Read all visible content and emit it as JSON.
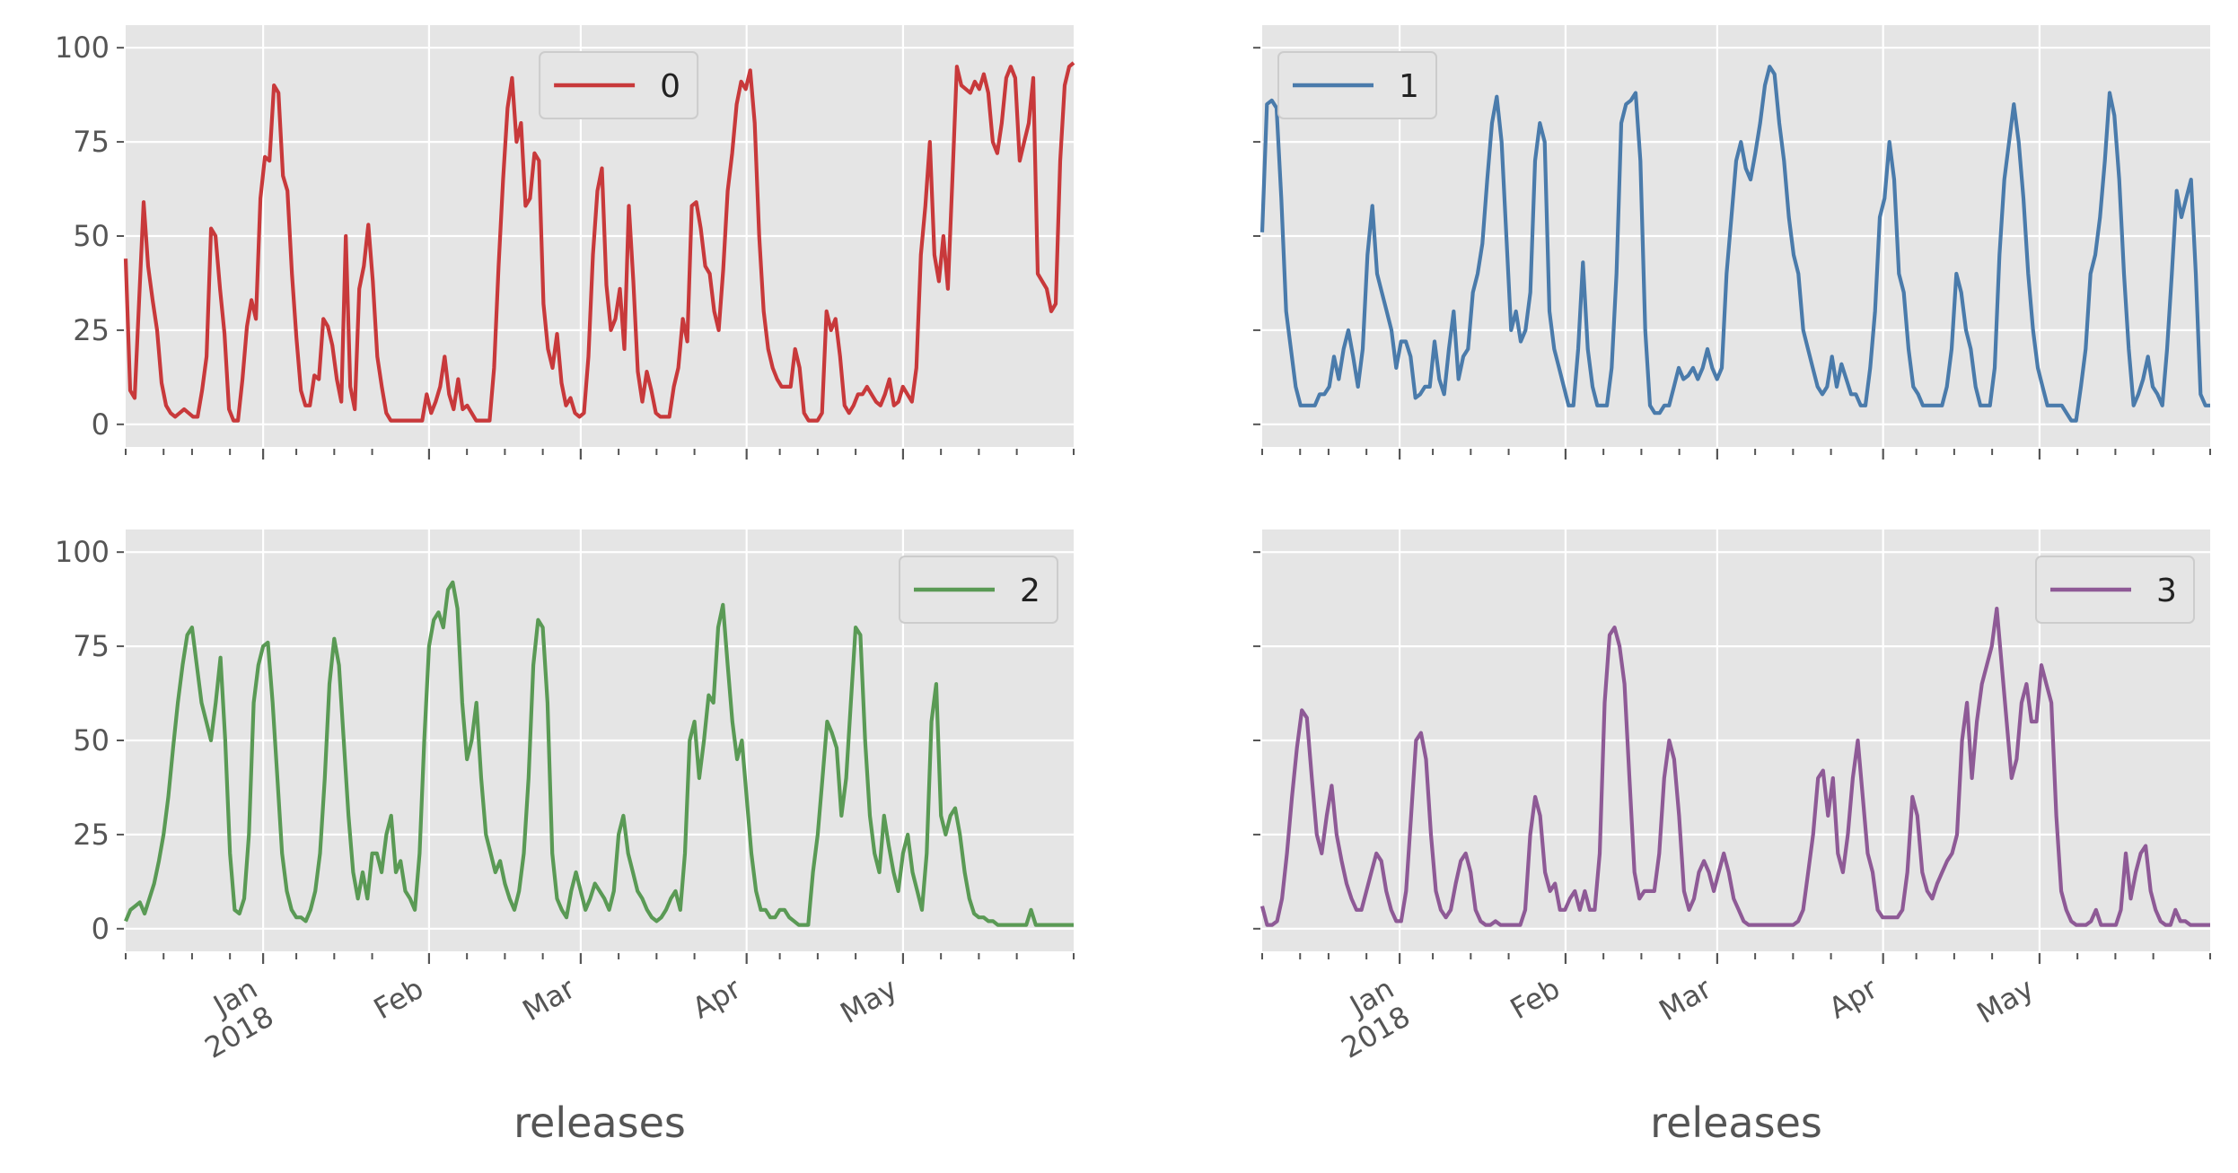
{
  "figure": {
    "background": "#ffffff",
    "panel_background": "#e5e5e5",
    "grid_color": "#ffffff"
  },
  "chart_data": [
    {
      "type": "line",
      "panel": "top-left",
      "series": [
        {
          "name": "0",
          "color": "#c8393b",
          "values": [
            44,
            9,
            7,
            33,
            59,
            42,
            33,
            25,
            11,
            5,
            3,
            2,
            3,
            4,
            3,
            2,
            2,
            9,
            18,
            52,
            50,
            36,
            24,
            4,
            1,
            1,
            12,
            26,
            33,
            28,
            60,
            71,
            70,
            90,
            88,
            66,
            62,
            40,
            23,
            9,
            5,
            5,
            13,
            12,
            28,
            26,
            21,
            12,
            6,
            50,
            10,
            4,
            36,
            42,
            53,
            38,
            18,
            10,
            3,
            1,
            1,
            1,
            1,
            1,
            1,
            1,
            1,
            8,
            3,
            6,
            10,
            18,
            8,
            4,
            12,
            4,
            5,
            3,
            1,
            1,
            1,
            1,
            15,
            42,
            65,
            84,
            92,
            75,
            80,
            58,
            60,
            72,
            70,
            32,
            20,
            15,
            24,
            11,
            5,
            7,
            3,
            2,
            3,
            18,
            45,
            62,
            68,
            37,
            25,
            28,
            36,
            20,
            58,
            38,
            14,
            6,
            14,
            9,
            3,
            2,
            2,
            2,
            10,
            15,
            28,
            22,
            58,
            59,
            52,
            42,
            40,
            30,
            25,
            41,
            62,
            72,
            85,
            91,
            89,
            94,
            80,
            50,
            30,
            20,
            15,
            12,
            10,
            10,
            10,
            20,
            15,
            3,
            1,
            1,
            1,
            3,
            30,
            25,
            28,
            18,
            5,
            3,
            5,
            8,
            8,
            10,
            8,
            6,
            5,
            8,
            12,
            5,
            6,
            10,
            8,
            6,
            15,
            45,
            58,
            75,
            45,
            38,
            50,
            36,
            65,
            95,
            90,
            89,
            88,
            91,
            89,
            93,
            88,
            75,
            72,
            80,
            92,
            95,
            92,
            70,
            75,
            80,
            92,
            40,
            38,
            36,
            30,
            32,
            70,
            90,
            95,
            96
          ]
        }
      ],
      "x_ticks": [
        "Jan\n2018",
        "Feb",
        "Mar",
        "Apr",
        "May"
      ],
      "ylim": [
        0,
        100
      ],
      "yticks": [
        0,
        25,
        50,
        75,
        100
      ],
      "ytick_labels_visible": true,
      "xtick_labels_visible": false,
      "legend": "top-center",
      "xlabel": ""
    },
    {
      "type": "line",
      "panel": "top-right",
      "series": [
        {
          "name": "1",
          "color": "#4a7bab",
          "values": [
            51,
            85,
            86,
            84,
            60,
            30,
            20,
            10,
            5,
            5,
            5,
            5,
            8,
            8,
            10,
            18,
            12,
            20,
            25,
            18,
            10,
            20,
            45,
            58,
            40,
            35,
            30,
            25,
            15,
            22,
            22,
            18,
            7,
            8,
            10,
            10,
            22,
            12,
            8,
            20,
            30,
            12,
            18,
            20,
            35,
            40,
            48,
            65,
            80,
            87,
            75,
            50,
            25,
            30,
            22,
            25,
            35,
            70,
            80,
            75,
            30,
            20,
            15,
            10,
            5,
            5,
            20,
            43,
            20,
            10,
            5,
            5,
            5,
            15,
            40,
            80,
            85,
            86,
            88,
            70,
            25,
            5,
            3,
            3,
            5,
            5,
            10,
            15,
            12,
            13,
            15,
            12,
            15,
            20,
            15,
            12,
            15,
            40,
            55,
            70,
            75,
            68,
            65,
            72,
            80,
            90,
            95,
            93,
            80,
            70,
            55,
            45,
            40,
            25,
            20,
            15,
            10,
            8,
            10,
            18,
            10,
            16,
            12,
            8,
            8,
            5,
            5,
            15,
            30,
            55,
            60,
            75,
            65,
            40,
            35,
            20,
            10,
            8,
            5,
            5,
            5,
            5,
            5,
            10,
            20,
            40,
            35,
            25,
            20,
            10,
            5,
            5,
            5,
            15,
            45,
            65,
            75,
            85,
            75,
            60,
            40,
            25,
            15,
            10,
            5,
            5,
            5,
            5,
            3,
            1,
            1,
            10,
            20,
            40,
            45,
            55,
            70,
            88,
            82,
            65,
            40,
            20,
            5,
            8,
            12,
            18,
            10,
            8,
            5,
            20,
            40,
            62,
            55,
            60,
            65,
            40,
            8,
            5,
            5
          ]
        }
      ],
      "x_ticks": [
        "Jan\n2018",
        "Feb",
        "Mar",
        "Apr",
        "May"
      ],
      "ylim": [
        0,
        100
      ],
      "yticks": [
        0,
        25,
        50,
        75,
        100
      ],
      "ytick_labels_visible": false,
      "xtick_labels_visible": false,
      "legend": "top-left",
      "xlabel": ""
    },
    {
      "type": "line",
      "panel": "bottom-left",
      "series": [
        {
          "name": "2",
          "color": "#5a9a55",
          "values": [
            2,
            5,
            6,
            7,
            4,
            8,
            12,
            18,
            25,
            35,
            48,
            60,
            70,
            78,
            80,
            70,
            60,
            55,
            50,
            60,
            72,
            50,
            20,
            5,
            4,
            8,
            25,
            60,
            70,
            75,
            76,
            60,
            40,
            20,
            10,
            5,
            3,
            3,
            2,
            5,
            10,
            20,
            40,
            65,
            77,
            70,
            50,
            30,
            15,
            8,
            15,
            8,
            20,
            20,
            15,
            25,
            30,
            15,
            18,
            10,
            8,
            5,
            20,
            50,
            75,
            82,
            84,
            80,
            90,
            92,
            85,
            60,
            45,
            50,
            60,
            40,
            25,
            20,
            15,
            18,
            12,
            8,
            5,
            10,
            20,
            40,
            70,
            82,
            80,
            60,
            20,
            8,
            5,
            3,
            10,
            15,
            10,
            5,
            8,
            12,
            10,
            8,
            5,
            10,
            25,
            30,
            20,
            15,
            10,
            8,
            5,
            3,
            2,
            3,
            5,
            8,
            10,
            5,
            20,
            50,
            55,
            40,
            50,
            62,
            60,
            80,
            86,
            70,
            55,
            45,
            50,
            35,
            20,
            10,
            5,
            5,
            3,
            3,
            5,
            5,
            3,
            2,
            1,
            1,
            1,
            15,
            25,
            40,
            55,
            52,
            48,
            30,
            40,
            60,
            80,
            78,
            50,
            30,
            20,
            15,
            30,
            22,
            15,
            10,
            20,
            25,
            15,
            10,
            5,
            20,
            55,
            65,
            30,
            25,
            30,
            32,
            25,
            15,
            8,
            4,
            3,
            3,
            2,
            2,
            1,
            1,
            1,
            1,
            1,
            1,
            1,
            5,
            1,
            1,
            1,
            1,
            1,
            1,
            1,
            1,
            1
          ]
        }
      ],
      "x_ticks": [
        "Jan\n2018",
        "Feb",
        "Mar",
        "Apr",
        "May"
      ],
      "ylim": [
        0,
        100
      ],
      "yticks": [
        0,
        25,
        50,
        75,
        100
      ],
      "ytick_labels_visible": true,
      "xtick_labels_visible": true,
      "legend": "top-right",
      "xlabel": "releases"
    },
    {
      "type": "line",
      "panel": "bottom-right",
      "series": [
        {
          "name": "3",
          "color": "#8e5a96",
          "values": [
            6,
            1,
            1,
            2,
            8,
            20,
            35,
            48,
            58,
            56,
            40,
            25,
            20,
            30,
            38,
            25,
            18,
            12,
            8,
            5,
            5,
            10,
            15,
            20,
            18,
            10,
            5,
            2,
            2,
            10,
            30,
            50,
            52,
            45,
            25,
            10,
            5,
            3,
            5,
            12,
            18,
            20,
            15,
            5,
            2,
            1,
            1,
            2,
            1,
            1,
            1,
            1,
            1,
            5,
            25,
            35,
            30,
            15,
            10,
            12,
            5,
            5,
            8,
            10,
            5,
            10,
            5,
            5,
            20,
            60,
            78,
            80,
            75,
            65,
            40,
            15,
            8,
            10,
            10,
            10,
            20,
            40,
            50,
            45,
            30,
            10,
            5,
            8,
            15,
            18,
            15,
            10,
            15,
            20,
            15,
            8,
            5,
            2,
            1,
            1,
            1,
            1,
            1,
            1,
            1,
            1,
            1,
            1,
            2,
            5,
            15,
            25,
            40,
            42,
            30,
            40,
            20,
            15,
            25,
            40,
            50,
            35,
            20,
            15,
            5,
            3,
            3,
            3,
            3,
            5,
            15,
            35,
            30,
            15,
            10,
            8,
            12,
            15,
            18,
            20,
            25,
            50,
            60,
            40,
            55,
            65,
            70,
            75,
            85,
            70,
            55,
            40,
            45,
            60,
            65,
            55,
            55,
            70,
            65,
            60,
            30,
            10,
            5,
            2,
            1,
            1,
            1,
            2,
            5,
            1,
            1,
            1,
            1,
            5,
            20,
            8,
            15,
            20,
            22,
            10,
            5,
            2,
            1,
            1,
            5,
            2,
            2,
            1,
            1,
            1,
            1,
            1
          ]
        }
      ],
      "x_ticks": [
        "Jan\n2018",
        "Feb",
        "Mar",
        "Apr",
        "May"
      ],
      "ylim": [
        0,
        100
      ],
      "yticks": [
        0,
        25,
        50,
        75,
        100
      ],
      "ytick_labels_visible": false,
      "xtick_labels_visible": true,
      "legend": "top-right",
      "xlabel": "releases"
    }
  ]
}
